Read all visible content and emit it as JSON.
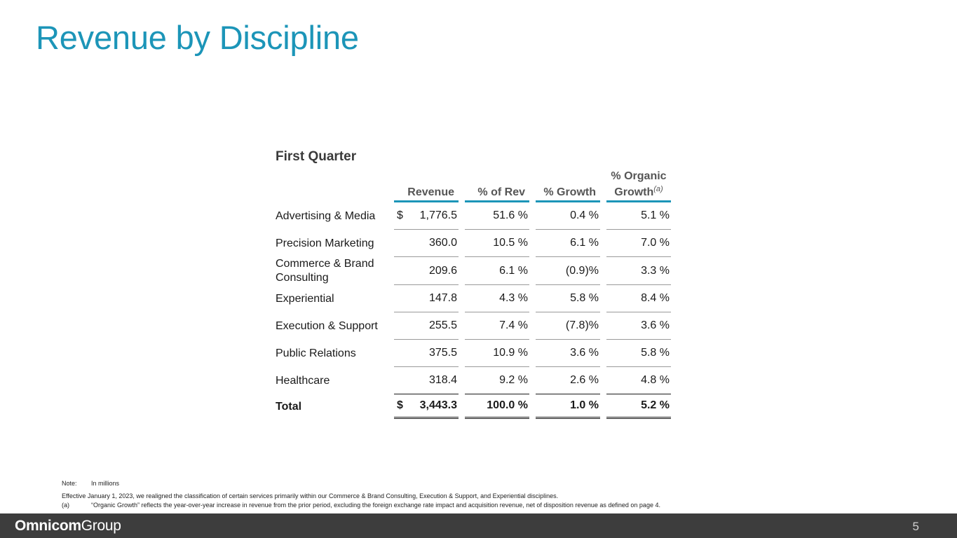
{
  "title": "Revenue by Discipline",
  "section": "First Quarter",
  "columns": {
    "revenue": "Revenue",
    "pct_rev": "% of Rev",
    "growth": "% Growth",
    "organic_line1": "% Organic",
    "organic_line2": "Growth",
    "organic_note": "(a)"
  },
  "rows": [
    {
      "name": "Advertising & Media",
      "cur": "$",
      "revenue": "1,776.5",
      "pct_rev": "51.6 %",
      "growth": "0.4 %",
      "organic": "5.1 %"
    },
    {
      "name": "Precision Marketing",
      "cur": "",
      "revenue": "360.0",
      "pct_rev": "10.5 %",
      "growth": "6.1 %",
      "organic": "7.0 %"
    },
    {
      "name": "Commerce & Brand Consulting",
      "cur": "",
      "revenue": "209.6",
      "pct_rev": "6.1 %",
      "growth": "(0.9)%",
      "organic": "3.3 %"
    },
    {
      "name": "Experiential",
      "cur": "",
      "revenue": "147.8",
      "pct_rev": "4.3 %",
      "growth": "5.8 %",
      "organic": "8.4 %"
    },
    {
      "name": "Execution & Support",
      "cur": "",
      "revenue": "255.5",
      "pct_rev": "7.4 %",
      "growth": "(7.8)%",
      "organic": "3.6 %"
    },
    {
      "name": "Public Relations",
      "cur": "",
      "revenue": "375.5",
      "pct_rev": "10.9 %",
      "growth": "3.6 %",
      "organic": "5.8 %"
    },
    {
      "name": "Healthcare",
      "cur": "",
      "revenue": "318.4",
      "pct_rev": "9.2 %",
      "growth": "2.6 %",
      "organic": "4.8 %"
    }
  ],
  "total": {
    "name": "Total",
    "cur": "$",
    "revenue": "3,443.3",
    "pct_rev": "100.0 %",
    "growth": "1.0 %",
    "organic": "5.2 %"
  },
  "notes": {
    "note_tag": "Note:",
    "note_text": "In millions",
    "effective": "Effective January 1, 2023, we realigned the classification of certain services primarily within our Commerce & Brand Consulting, Execution & Support, and Experiential disciplines.",
    "a_tag": "(a)",
    "a_text": "“Organic Growth” reflects the year-over-year increase in revenue from the prior period, excluding the foreign exchange rate impact and acquisition revenue, net of disposition revenue as defined on page 4."
  },
  "footer": {
    "logo_bold": "Omnicom",
    "logo_light": "Group",
    "page": "5"
  }
}
